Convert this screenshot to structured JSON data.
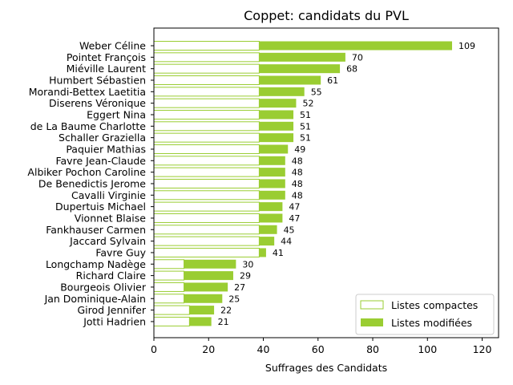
{
  "chart_data": {
    "type": "bar",
    "orientation": "horizontal",
    "stacked": true,
    "title": "Coppet: candidats du PVL",
    "xlabel": "Suffrages des Candidats",
    "ylabel": "",
    "xlim": [
      0,
      126
    ],
    "xticks": [
      "0",
      "20",
      "40",
      "60",
      "80",
      "100",
      "120"
    ],
    "legend_position": "bottom-right",
    "grid": false,
    "color": "#9acd32",
    "categories": [
      "Weber Céline",
      "Pointet François",
      "Miéville Laurent",
      "Humbert Sébastien",
      "Morandi-Bettex Laetitia",
      "Diserens Véronique",
      "Eggert Nina",
      "de La Baume Charlotte",
      "Schaller Graziella",
      "Paquier Mathias",
      "Favre Jean-Claude",
      "Albiker Pochon Caroline",
      "De Benedictis Jerome",
      "Cavalli Virginie",
      "Dupertuis Michael",
      "Vionnet Blaise",
      "Fankhauser Carmen",
      "Jaccard Sylvain",
      "Favre Guy",
      "Longchamp Nadège",
      "Richard Claire",
      "Bourgeois Olivier",
      "Jan Dominique-Alain",
      "Girod Jennifer",
      "Jotti Hadrien"
    ],
    "series": [
      {
        "name": "Listes compactes",
        "style": "outline",
        "values": [
          38.5,
          38.5,
          38.5,
          38.5,
          38.5,
          38.5,
          38.5,
          38.5,
          38.5,
          38.5,
          38.5,
          38.5,
          38.5,
          38.5,
          38.5,
          38.5,
          38.5,
          38.5,
          38.5,
          11,
          11,
          11,
          11,
          13,
          13
        ]
      },
      {
        "name": "Listes modifiées",
        "style": "filled",
        "values": [
          70.5,
          31.5,
          29.5,
          22.5,
          16.5,
          13.5,
          12.5,
          12.5,
          12.5,
          10.5,
          9.5,
          9.5,
          9.5,
          9.5,
          8.5,
          8.5,
          6.5,
          5.5,
          2.5,
          19,
          18,
          16,
          14,
          9,
          8
        ]
      }
    ],
    "totals": [
      109,
      70,
      68,
      61,
      55,
      52,
      51,
      51,
      51,
      49,
      48,
      48,
      48,
      48,
      47,
      47,
      45,
      44,
      41,
      30,
      29,
      27,
      25,
      22,
      21
    ]
  }
}
